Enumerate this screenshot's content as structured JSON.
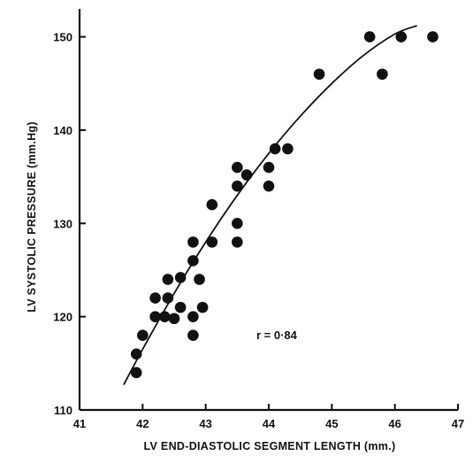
{
  "chart_data": {
    "type": "scatter",
    "xlabel": "LV END-DIASTOLIC SEGMENT LENGTH (mm.)",
    "ylabel": "LV SYSTOLIC PRESSURE (mm.Hg)",
    "xlim": [
      41,
      47
    ],
    "ylim": [
      110,
      153
    ],
    "x_ticks": [
      "41",
      "42",
      "43",
      "44",
      "45",
      "46",
      "47"
    ],
    "y_ticks": [
      "110",
      "120",
      "130",
      "140",
      "150"
    ],
    "annotation": "r = 0·84",
    "grid": false,
    "points": [
      {
        "x": 41.9,
        "y": 114
      },
      {
        "x": 41.9,
        "y": 116
      },
      {
        "x": 42.0,
        "y": 118
      },
      {
        "x": 42.2,
        "y": 120
      },
      {
        "x": 42.2,
        "y": 122
      },
      {
        "x": 42.35,
        "y": 120
      },
      {
        "x": 42.4,
        "y": 122
      },
      {
        "x": 42.4,
        "y": 124
      },
      {
        "x": 42.5,
        "y": 119.8
      },
      {
        "x": 42.6,
        "y": 121
      },
      {
        "x": 42.6,
        "y": 124.2
      },
      {
        "x": 42.8,
        "y": 118
      },
      {
        "x": 42.8,
        "y": 120
      },
      {
        "x": 42.8,
        "y": 126
      },
      {
        "x": 42.8,
        "y": 128
      },
      {
        "x": 42.9,
        "y": 124
      },
      {
        "x": 42.95,
        "y": 121
      },
      {
        "x": 43.1,
        "y": 128
      },
      {
        "x": 43.1,
        "y": 132
      },
      {
        "x": 43.5,
        "y": 128
      },
      {
        "x": 43.5,
        "y": 130
      },
      {
        "x": 43.5,
        "y": 134
      },
      {
        "x": 43.5,
        "y": 136
      },
      {
        "x": 43.65,
        "y": 135.2
      },
      {
        "x": 44.0,
        "y": 134
      },
      {
        "x": 44.0,
        "y": 136
      },
      {
        "x": 44.1,
        "y": 138
      },
      {
        "x": 44.3,
        "y": 138
      },
      {
        "x": 44.8,
        "y": 146
      },
      {
        "x": 45.6,
        "y": 150
      },
      {
        "x": 45.8,
        "y": 146
      },
      {
        "x": 46.1,
        "y": 150
      },
      {
        "x": 46.6,
        "y": 150
      }
    ],
    "fit_curve": [
      {
        "x": 41.7,
        "y": 112.7
      },
      {
        "x": 42.0,
        "y": 116.5
      },
      {
        "x": 42.5,
        "y": 122.5
      },
      {
        "x": 43.0,
        "y": 128.0
      },
      {
        "x": 43.5,
        "y": 133.0
      },
      {
        "x": 44.0,
        "y": 137.5
      },
      {
        "x": 44.5,
        "y": 141.5
      },
      {
        "x": 45.0,
        "y": 145.0
      },
      {
        "x": 45.5,
        "y": 148.0
      },
      {
        "x": 46.0,
        "y": 150.3
      },
      {
        "x": 46.35,
        "y": 151.2
      }
    ]
  }
}
